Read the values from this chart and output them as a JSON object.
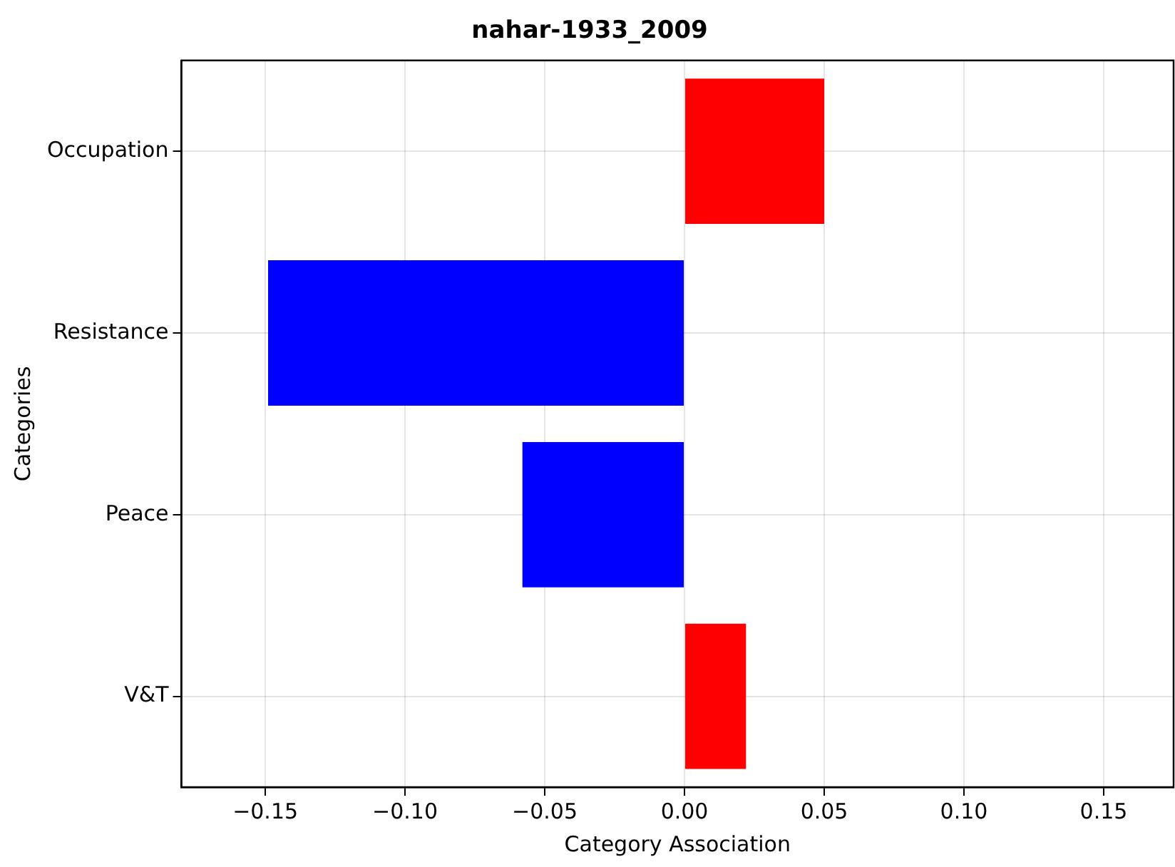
{
  "chart_data": {
    "type": "bar",
    "orientation": "horizontal",
    "title": "nahar-1933_2009",
    "xlabel": "Category Association",
    "ylabel": "Categories",
    "categories": [
      "Occupation",
      "Resistance",
      "Peace",
      "V&T"
    ],
    "values": [
      0.05,
      -0.149,
      -0.058,
      0.022
    ],
    "colors": [
      "#ff0000",
      "#0000ff",
      "#0000ff",
      "#ff0000"
    ],
    "xlim": [
      -0.18,
      0.175
    ],
    "xticks": [
      {
        "value": -0.15,
        "label": "−0.15"
      },
      {
        "value": -0.1,
        "label": "−0.10"
      },
      {
        "value": -0.05,
        "label": "−0.05"
      },
      {
        "value": 0,
        "label": "0.00"
      },
      {
        "value": 0.05,
        "label": "0.05"
      },
      {
        "value": 0.1,
        "label": "0.10"
      },
      {
        "value": 0.15,
        "label": "0.15"
      }
    ],
    "grid": true,
    "legend": false
  }
}
